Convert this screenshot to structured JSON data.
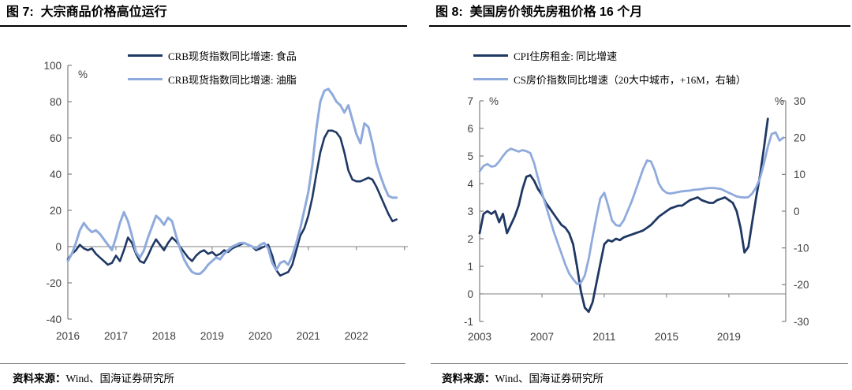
{
  "colors": {
    "series_dark_navy": "#1f3864",
    "series_light_blue": "#8faadc",
    "axis_line": "#808080",
    "tick_label": "#3f3f3f",
    "title_text": "#000000",
    "title_underline": "#000000",
    "source_divider": "#7f7f7f"
  },
  "footer": {
    "source_label": "资料来源：",
    "source_text": "Wind、国海证券研究所"
  },
  "chart_data": [
    {
      "type": "line",
      "title": "图 7:  大宗商品价格高位运行",
      "xlabel": "",
      "ylabel": "%",
      "legend_position": "top-center",
      "grid": false,
      "xlim": [
        2016,
        2023.07
      ],
      "xticks": [
        {
          "v": 2016,
          "label": "2016"
        },
        {
          "v": 2017,
          "label": "2017"
        },
        {
          "v": 2018,
          "label": "2018"
        },
        {
          "v": 2019,
          "label": "2019"
        },
        {
          "v": 2020,
          "label": "2020"
        },
        {
          "v": 2021,
          "label": "2021"
        },
        {
          "v": 2022,
          "label": "2022"
        },
        {
          "v": 2023,
          "label": ""
        }
      ],
      "axes": {
        "left": {
          "unit": "%",
          "lim": [
            -40,
            100
          ],
          "ticks": [
            100,
            80,
            60,
            40,
            20,
            0,
            -20,
            -40
          ]
        }
      },
      "series": [
        {
          "name": "CRB现货指数同比增速: 食品",
          "axis": "left",
          "color": "#1f3864",
          "width": 2.6,
          "x_start": 2016.0,
          "x_step_months": 1,
          "values": [
            -7,
            -4,
            -2,
            1,
            -1,
            -2,
            -1,
            -4,
            -6,
            -8,
            -10,
            -9,
            -5,
            -8,
            -2,
            5,
            2,
            -4,
            -8,
            -9,
            -5,
            0,
            4,
            1,
            -2,
            2,
            5,
            3,
            0,
            -3,
            -6,
            -8,
            -5,
            -3,
            -2,
            -4,
            -3,
            -5,
            -4,
            -2,
            -3,
            -1,
            0,
            1,
            2,
            1,
            0,
            -2,
            -1,
            0,
            1,
            -5,
            -13,
            -16,
            -15,
            -14,
            -10,
            -2,
            6,
            10,
            17,
            27,
            40,
            52,
            60,
            64,
            64,
            63,
            60,
            52,
            42,
            37,
            36,
            36,
            37,
            38,
            37,
            33,
            28,
            23,
            18,
            14,
            15
          ]
        },
        {
          "name": "CRB现货指数同比增速: 油脂",
          "axis": "left",
          "color": "#8faadc",
          "width": 3,
          "x_start": 2016.0,
          "x_step_months": 1,
          "values": [
            -8,
            -4,
            2,
            9,
            13,
            10,
            8,
            9,
            7,
            4,
            1,
            -2,
            5,
            13,
            19,
            14,
            6,
            -3,
            -6,
            -2,
            5,
            11,
            17,
            15,
            12,
            16,
            14,
            6,
            -1,
            -7,
            -11,
            -14,
            -15,
            -15,
            -13,
            -10,
            -8,
            -6,
            -7,
            -4,
            -2,
            0,
            1,
            2,
            2,
            1,
            0,
            -1,
            1,
            2,
            -1,
            -9,
            -13,
            -9,
            -8,
            -10,
            -5,
            2,
            10,
            20,
            30,
            45,
            65,
            80,
            86,
            87,
            84,
            80,
            78,
            74,
            78,
            70,
            62,
            57,
            68,
            66,
            57,
            46,
            39,
            33,
            28,
            27,
            27
          ]
        }
      ]
    },
    {
      "type": "line",
      "title": "图 8:  美国房价领先房租价格 16 个月",
      "xlabel": "",
      "legend_position": "top-left",
      "grid": false,
      "xlim": [
        2003,
        2022.65
      ],
      "xticks": [
        {
          "v": 2003,
          "label": "2003"
        },
        {
          "v": 2007,
          "label": "2007"
        },
        {
          "v": 2011,
          "label": "2011"
        },
        {
          "v": 2015,
          "label": "2015"
        },
        {
          "v": 2019,
          "label": "2019"
        }
      ],
      "axes": {
        "left": {
          "unit": "%",
          "lim": [
            -1,
            7
          ],
          "ticks": [
            7,
            6,
            5,
            4,
            3,
            2,
            1,
            0,
            -1
          ]
        },
        "right": {
          "unit": "%",
          "lim": [
            -30,
            30
          ],
          "ticks": [
            30,
            20,
            10,
            0,
            -10,
            -20,
            -30
          ]
        }
      },
      "series": [
        {
          "name": "CPI住房租金: 同比增速",
          "axis": "left",
          "color": "#1f3864",
          "width": 2.8,
          "x_start": 2003.0,
          "x_step_months": 3,
          "values": [
            2.2,
            2.9,
            3.0,
            2.9,
            3.0,
            2.6,
            2.9,
            2.2,
            2.5,
            2.8,
            3.2,
            3.8,
            4.25,
            4.3,
            4.1,
            3.8,
            3.6,
            3.3,
            3.1,
            2.9,
            2.7,
            2.5,
            2.4,
            2.2,
            1.8,
            1.0,
            0.1,
            -0.5,
            -0.65,
            -0.3,
            0.4,
            1.1,
            1.8,
            1.95,
            1.9,
            2.0,
            1.95,
            2.05,
            2.1,
            2.15,
            2.2,
            2.25,
            2.3,
            2.4,
            2.5,
            2.65,
            2.8,
            2.9,
            3.0,
            3.1,
            3.15,
            3.2,
            3.2,
            3.3,
            3.4,
            3.45,
            3.5,
            3.4,
            3.35,
            3.3,
            3.3,
            3.4,
            3.45,
            3.5,
            3.4,
            3.3,
            3.0,
            2.4,
            1.5,
            1.7,
            2.6,
            3.5,
            4.3,
            5.3,
            6.35
          ]
        },
        {
          "name": "CS房价指数同比增速（20大中城市，+16M，右轴）",
          "axis": "right",
          "color": "#8faadc",
          "width": 2.8,
          "x_start": 2003.0,
          "x_step_months": 3,
          "values": [
            10.8,
            12.3,
            12.8,
            12.1,
            12.3,
            13.5,
            15.0,
            16.3,
            17.0,
            16.6,
            16.2,
            16.6,
            16.3,
            15.8,
            13.0,
            9.0,
            5.0,
            1.5,
            -2.0,
            -5.5,
            -8.5,
            -11.5,
            -14.5,
            -17.0,
            -18.5,
            -19.8,
            -19.5,
            -17.5,
            -13.0,
            -7.0,
            -1.5,
            3.5,
            5.0,
            1.5,
            -2.5,
            -3.8,
            -4.0,
            -2.5,
            0.0,
            2.5,
            5.5,
            8.5,
            11.5,
            13.8,
            13.5,
            11.0,
            7.5,
            5.8,
            5.0,
            4.8,
            5.0,
            5.2,
            5.4,
            5.5,
            5.6,
            5.8,
            5.9,
            6.0,
            6.2,
            6.3,
            6.3,
            6.2,
            6.0,
            5.5,
            5.0,
            4.5,
            4.0,
            3.8,
            3.7,
            3.8,
            4.8,
            6.5,
            9.0,
            13.0,
            17.5,
            21.0,
            21.4,
            19.2,
            20.0
          ]
        }
      ]
    }
  ]
}
